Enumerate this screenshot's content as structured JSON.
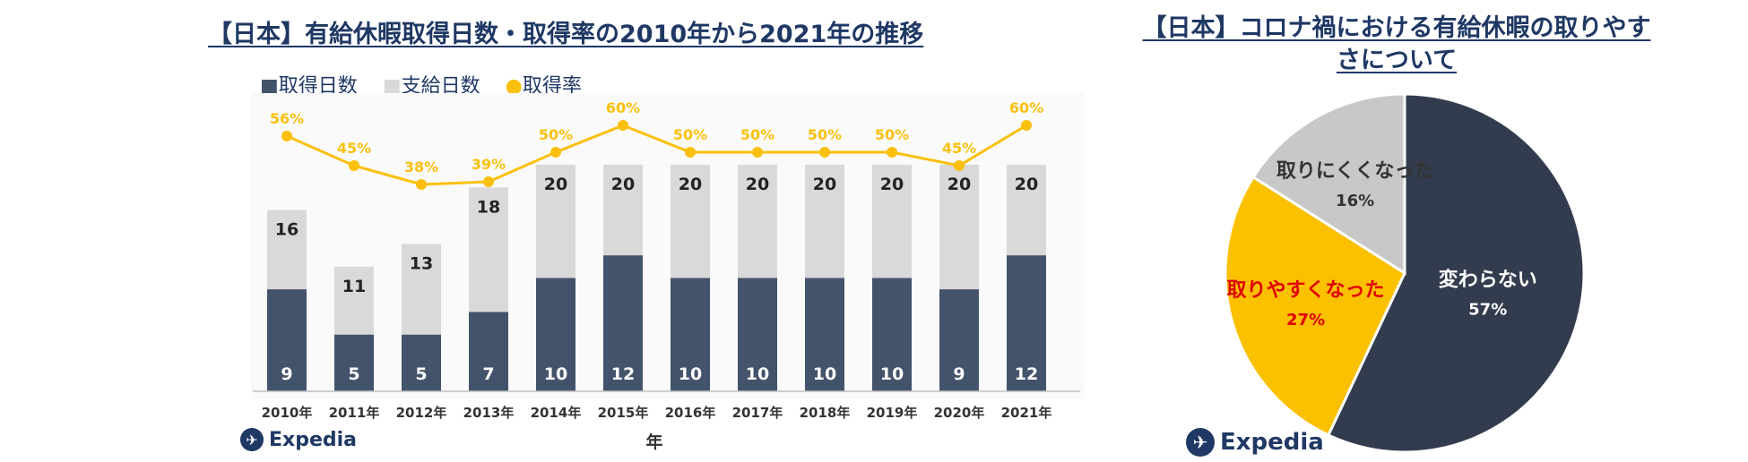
{
  "bar_chart": {
    "title": "【日本】有給休暇取得日数・取得率の2010年から2021年の推移",
    "legend": [
      "■取得日数",
      "■支給日数",
      "●取得率"
    ],
    "xlabel": "年",
    "logo_text": "Expedia"
  },
  "pie_chart": {
    "title": "【日本】コロナ禍における有給休暇の取りやすさについて",
    "logo_text": "Expedia"
  },
  "colors": {
    "taken": "#43536b",
    "granted": "#d9d9d9",
    "rate": "#fbc00d",
    "pie_same": "#333c4e",
    "pie_easier": "#fbc000",
    "pie_harder": "#c8c8c8",
    "easier_label": "#e00000"
  },
  "chart_data": [
    {
      "type": "bar",
      "title": "【日本】有給休暇取得日数・取得率の2010年から2021年の推移",
      "xlabel": "年",
      "categories": [
        "2010年",
        "2011年",
        "2012年",
        "2013年",
        "2014年",
        "2015年",
        "2016年",
        "2017年",
        "2018年",
        "2019年",
        "2020年",
        "2021年"
      ],
      "series": [
        {
          "name": "取得日数",
          "values": [
            9,
            5,
            5,
            7,
            10,
            12,
            10,
            10,
            10,
            10,
            9,
            12
          ],
          "labels": [
            "9",
            "5",
            "5",
            "7",
            "10",
            "12",
            "10",
            "10",
            "10",
            "10",
            "9",
            "12"
          ]
        },
        {
          "name": "支給日数",
          "values": [
            16,
            11,
            13,
            18,
            20,
            20,
            20,
            20,
            20,
            20,
            20,
            20
          ],
          "labels": [
            "16",
            "11",
            "13",
            "18",
            "20",
            "20",
            "20",
            "20",
            "20",
            "20",
            "20",
            "20"
          ]
        },
        {
          "name": "取得率",
          "type": "line",
          "values": [
            56,
            45,
            38,
            39,
            50,
            60,
            50,
            50,
            50,
            50,
            45,
            60
          ],
          "labels": [
            "56%",
            "45%",
            "38%",
            "39%",
            "50%",
            "60%",
            "50%",
            "50%",
            "50%",
            "50%",
            "45%",
            "60%"
          ]
        }
      ],
      "ylim": [
        0,
        20
      ],
      "grid": false,
      "legend": "top-left"
    },
    {
      "type": "pie",
      "title": "【日本】コロナ禍における有給休暇の取りやすさについて",
      "slices": [
        {
          "name": "変わらない",
          "value": 57,
          "label": "57%"
        },
        {
          "name": "取りやすくなった",
          "value": 27,
          "label": "27%"
        },
        {
          "name": "取りにくくなった",
          "value": 16,
          "label": "16%"
        }
      ]
    }
  ]
}
